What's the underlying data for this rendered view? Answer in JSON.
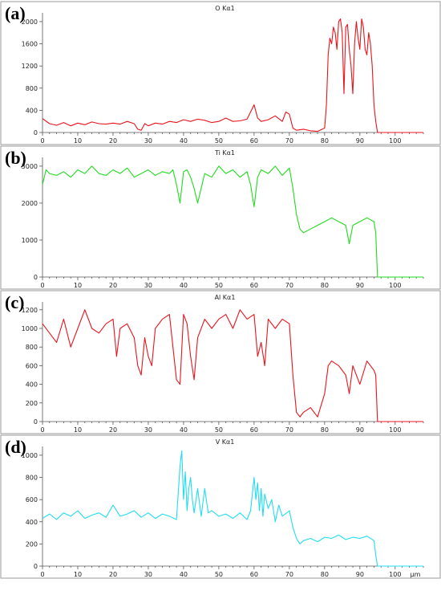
{
  "chart_data": [
    {
      "type": "line",
      "panel_label": "(a)",
      "title": "O Kα1",
      "color": "#e8141c",
      "x_unit": "",
      "xlim": [
        0,
        108
      ],
      "xticks": [
        0,
        10,
        20,
        30,
        40,
        50,
        60,
        70,
        80,
        90,
        100
      ],
      "ylim": [
        0,
        2100
      ],
      "yticks": [
        0,
        400,
        800,
        1200,
        1600,
        2000
      ],
      "x": [
        0,
        2,
        4,
        6,
        8,
        10,
        12,
        14,
        16,
        18,
        20,
        22,
        24,
        26,
        27,
        28,
        29,
        30,
        32,
        34,
        36,
        38,
        40,
        42,
        44,
        46,
        48,
        50,
        52,
        54,
        56,
        58,
        60,
        61,
        62,
        64,
        66,
        68,
        69,
        70,
        71,
        72,
        74,
        76,
        78,
        80,
        80.5,
        81,
        81.5,
        82,
        82.5,
        83,
        83.5,
        84,
        84.5,
        85,
        85.5,
        86,
        86.5,
        87,
        87.5,
        88,
        88.5,
        89,
        89.5,
        90,
        90.5,
        91,
        91.5,
        92,
        92.5,
        93,
        93.5,
        94,
        94.5,
        95,
        96,
        98,
        100,
        102,
        104,
        106,
        108
      ],
      "series": [
        {
          "values": [
            250,
            160,
            130,
            180,
            120,
            170,
            140,
            190,
            160,
            150,
            170,
            150,
            200,
            160,
            60,
            40,
            160,
            120,
            170,
            150,
            200,
            180,
            230,
            200,
            240,
            220,
            180,
            200,
            260,
            200,
            210,
            240,
            500,
            260,
            200,
            230,
            300,
            200,
            370,
            330,
            80,
            40,
            60,
            30,
            20,
            80,
            500,
            1400,
            1700,
            1600,
            1900,
            1800,
            1500,
            2000,
            2050,
            1800,
            700,
            1900,
            1950,
            1500,
            1200,
            700,
            1600,
            2000,
            1700,
            1500,
            2050,
            1900,
            1500,
            1400,
            1800,
            1600,
            1200,
            500,
            200,
            0,
            0,
            0,
            0,
            0,
            0,
            0,
            0
          ]
        }
      ]
    },
    {
      "type": "line",
      "panel_label": "(b)",
      "title": "Ti Kα1",
      "color": "#1fdc1f",
      "x_unit": "",
      "xlim": [
        0,
        108
      ],
      "xticks": [
        0,
        10,
        20,
        30,
        40,
        50,
        60,
        70,
        80,
        90,
        100
      ],
      "ylim": [
        0,
        3150
      ],
      "yticks": [
        0,
        1000,
        2000,
        3000
      ],
      "x": [
        0,
        1,
        2,
        4,
        6,
        8,
        10,
        12,
        14,
        16,
        18,
        20,
        22,
        24,
        26,
        28,
        30,
        32,
        34,
        36,
        37,
        38,
        39,
        40,
        41,
        42,
        43,
        44,
        46,
        48,
        50,
        52,
        54,
        56,
        58,
        59,
        60,
        61,
        62,
        64,
        66,
        68,
        70,
        71,
        72,
        73,
        74,
        76,
        78,
        80,
        82,
        84,
        86,
        87,
        88,
        90,
        92,
        94,
        94.5,
        95,
        96,
        98,
        100,
        102,
        104,
        106,
        108
      ],
      "series": [
        {
          "values": [
            2500,
            2900,
            2800,
            2750,
            2850,
            2700,
            2900,
            2800,
            3000,
            2800,
            2750,
            2900,
            2800,
            2950,
            2700,
            2800,
            2900,
            2750,
            2850,
            2800,
            2900,
            2500,
            2000,
            2850,
            2900,
            2700,
            2400,
            2000,
            2800,
            2700,
            3000,
            2800,
            2900,
            2700,
            2850,
            2500,
            1900,
            2700,
            2900,
            2800,
            3000,
            2750,
            2950,
            2400,
            1700,
            1300,
            1200,
            1300,
            1400,
            1500,
            1600,
            1500,
            1400,
            900,
            1400,
            1500,
            1600,
            1500,
            1200,
            0,
            0,
            0,
            0,
            0,
            0,
            0,
            0
          ]
        }
      ]
    },
    {
      "type": "line",
      "panel_label": "(c)",
      "title": "Al Kα1",
      "color": "#e8141c",
      "x_unit": "",
      "xlim": [
        0,
        108
      ],
      "xticks": [
        0,
        10,
        20,
        30,
        40,
        50,
        60,
        70,
        80,
        90,
        100
      ],
      "ylim": [
        0,
        1250
      ],
      "yticks": [
        0,
        200,
        400,
        600,
        800,
        1000,
        1200
      ],
      "x": [
        0,
        2,
        4,
        6,
        8,
        10,
        12,
        14,
        16,
        18,
        20,
        21,
        22,
        24,
        26,
        27,
        28,
        29,
        30,
        31,
        32,
        34,
        36,
        37,
        38,
        39,
        40,
        41,
        42,
        43,
        44,
        46,
        48,
        50,
        52,
        54,
        56,
        58,
        60,
        61,
        62,
        63,
        64,
        66,
        68,
        70,
        71,
        72,
        73,
        74,
        76,
        78,
        80,
        81,
        82,
        84,
        86,
        87,
        88,
        90,
        92,
        94,
        94.5,
        95,
        96,
        98,
        100,
        102,
        104,
        106,
        108
      ],
      "series": [
        {
          "values": [
            1050,
            950,
            850,
            1100,
            800,
            1000,
            1200,
            1000,
            950,
            1050,
            1100,
            700,
            1000,
            1050,
            900,
            600,
            500,
            900,
            700,
            600,
            1000,
            1100,
            1150,
            800,
            450,
            400,
            1150,
            1050,
            700,
            450,
            900,
            1100,
            1000,
            1100,
            1150,
            1000,
            1200,
            1100,
            1150,
            700,
            850,
            600,
            1100,
            1000,
            1100,
            1050,
            500,
            100,
            50,
            100,
            150,
            50,
            300,
            600,
            650,
            600,
            500,
            300,
            600,
            400,
            650,
            550,
            500,
            0,
            0,
            0,
            0,
            0,
            0,
            0,
            0
          ]
        }
      ]
    },
    {
      "type": "line",
      "panel_label": "(d)",
      "title": "V Kα1",
      "color": "#22dcf0",
      "x_unit": "μm",
      "xlim": [
        0,
        108
      ],
      "xticks": [
        0,
        10,
        20,
        30,
        40,
        50,
        60,
        70,
        80,
        90,
        100
      ],
      "ylim": [
        0,
        1050
      ],
      "yticks": [
        0,
        200,
        400,
        600,
        800,
        1000
      ],
      "x": [
        0,
        2,
        4,
        6,
        8,
        10,
        12,
        14,
        16,
        18,
        20,
        22,
        24,
        26,
        28,
        30,
        32,
        34,
        36,
        38,
        39,
        39.5,
        40,
        40.5,
        41,
        41.5,
        42,
        42.5,
        43,
        44,
        45,
        46,
        47,
        48,
        50,
        52,
        54,
        56,
        58,
        59,
        60,
        60.5,
        61,
        61.5,
        62,
        62.5,
        63,
        64,
        65,
        66,
        67,
        68,
        70,
        71,
        72,
        73,
        74,
        76,
        78,
        80,
        82,
        84,
        86,
        88,
        90,
        92,
        94,
        94.5,
        95,
        96,
        98,
        100,
        102,
        104,
        106,
        108
      ],
      "series": [
        {
          "values": [
            430,
            470,
            420,
            480,
            450,
            500,
            430,
            460,
            480,
            440,
            550,
            450,
            470,
            500,
            440,
            480,
            430,
            470,
            450,
            420,
            900,
            1040,
            600,
            850,
            500,
            700,
            800,
            600,
            480,
            700,
            450,
            700,
            480,
            500,
            450,
            470,
            430,
            480,
            420,
            500,
            800,
            600,
            750,
            500,
            700,
            450,
            650,
            520,
            600,
            400,
            550,
            450,
            500,
            350,
            250,
            200,
            230,
            250,
            220,
            260,
            250,
            280,
            240,
            260,
            250,
            270,
            230,
            100,
            0,
            0,
            0,
            0,
            0,
            0,
            0,
            0
          ]
        }
      ]
    }
  ]
}
